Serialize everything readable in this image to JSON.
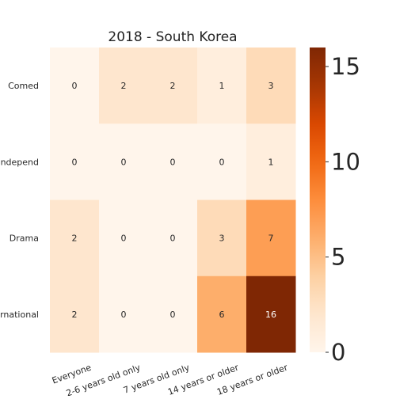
{
  "chart_data": {
    "type": "heatmap",
    "title": "2018 - South Korea",
    "x_categories": [
      "Everyone",
      "2-6 years old only",
      "7 years old only",
      "14 years or older",
      "18 years or older"
    ],
    "y_categories": [
      "Comed",
      "Independ",
      "Drama",
      "International"
    ],
    "values": [
      [
        0,
        2,
        2,
        1,
        3
      ],
      [
        0,
        0,
        0,
        0,
        1
      ],
      [
        2,
        0,
        0,
        3,
        7
      ],
      [
        2,
        0,
        0,
        6,
        16
      ]
    ],
    "color_range": [
      0,
      16
    ],
    "colormap": "Oranges",
    "colorbar_ticks": [
      0,
      5,
      10,
      15
    ],
    "grid": false,
    "xlabel": "",
    "ylabel": ""
  }
}
